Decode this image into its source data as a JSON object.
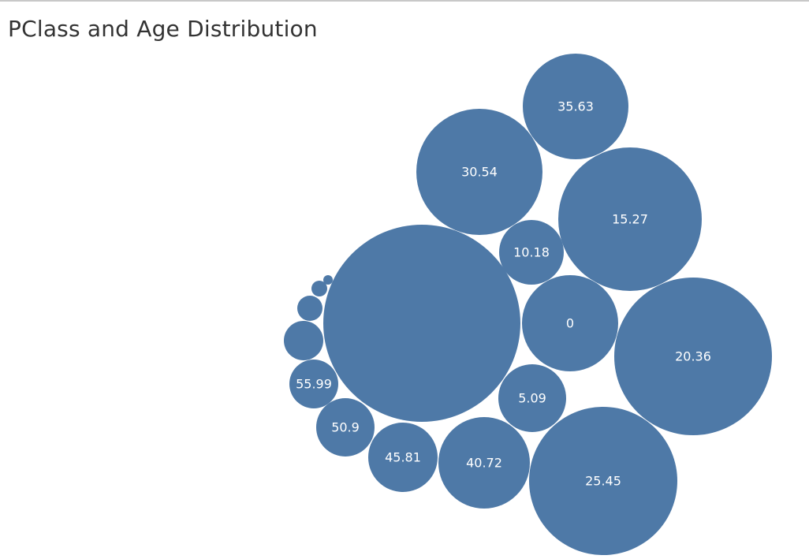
{
  "title": "PClass and Age Distribution",
  "colors": {
    "bubble_fill": "#4e79a7",
    "label_text": "#ffffff",
    "title_text": "#333333"
  },
  "chart_data": {
    "type": "packed-bubble",
    "title": "PClass and Age Distribution",
    "bubbles": [
      {
        "label": "",
        "relative_size": 125
      },
      {
        "label": "20.36",
        "relative_size": 100
      },
      {
        "label": "25.45",
        "relative_size": 94
      },
      {
        "label": "15.27",
        "relative_size": 91
      },
      {
        "label": "30.54",
        "relative_size": 80
      },
      {
        "label": "35.63",
        "relative_size": 67
      },
      {
        "label": "0",
        "relative_size": 61
      },
      {
        "label": "40.72",
        "relative_size": 58
      },
      {
        "label": "45.81",
        "relative_size": 44
      },
      {
        "label": "5.09",
        "relative_size": 43
      },
      {
        "label": "10.18",
        "relative_size": 41
      },
      {
        "label": "50.9",
        "relative_size": 37
      },
      {
        "label": "55.99",
        "relative_size": 31
      },
      {
        "label": "",
        "relative_size": 25
      },
      {
        "label": "",
        "relative_size": 16
      },
      {
        "label": "",
        "relative_size": 10
      },
      {
        "label": "",
        "relative_size": 6
      }
    ]
  }
}
